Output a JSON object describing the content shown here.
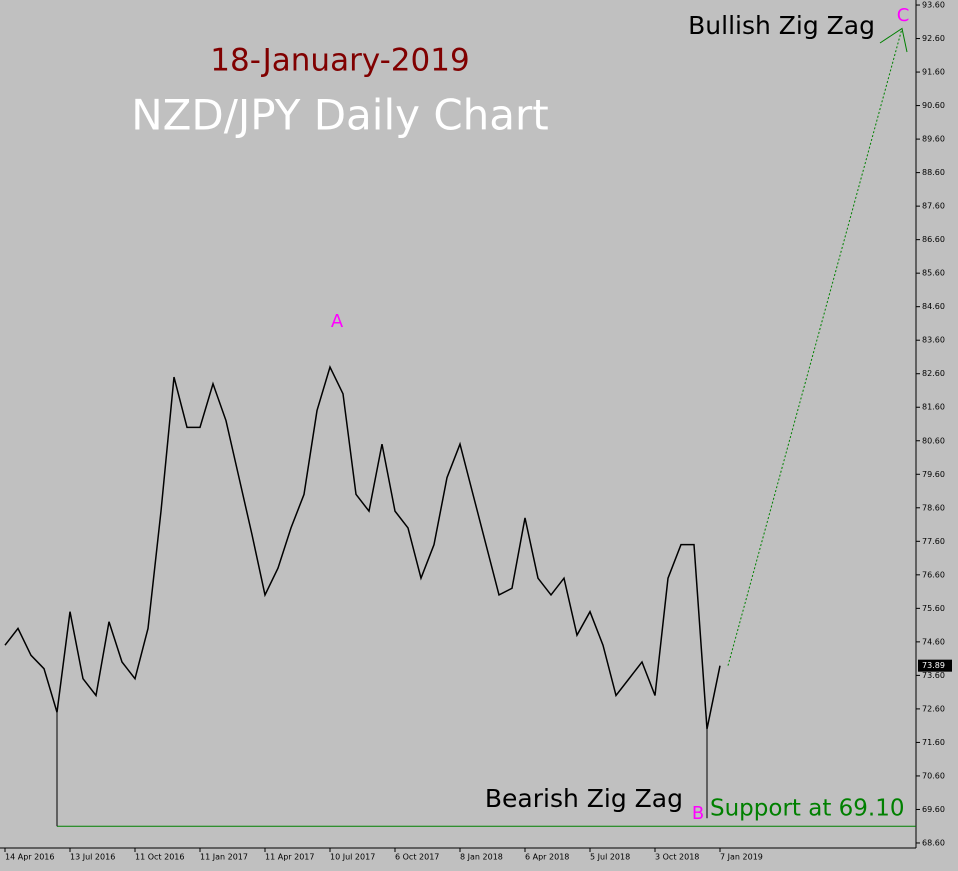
{
  "chart_data": {
    "type": "line",
    "title": "18-January-2019",
    "subtitle": "NZD/JPY Daily Chart",
    "annotations": {
      "bullish": "Bullish Zig Zag",
      "bearish": "Bearish Zig Zag",
      "support_label": "Support at 69.10",
      "wave_a": "A",
      "wave_b": "B",
      "wave_c": "C"
    },
    "categories": [
      "14 Apr 2016",
      null,
      null,
      null,
      null,
      "13 Jul 2016",
      null,
      null,
      null,
      null,
      "11 Oct 2016",
      null,
      null,
      null,
      null,
      "11 Jan 2017",
      null,
      null,
      null,
      null,
      "11 Apr 2017",
      null,
      null,
      null,
      null,
      "10 Jul 2017",
      null,
      null,
      null,
      null,
      "6 Oct 2017",
      null,
      null,
      null,
      null,
      "8 Jan 2018",
      null,
      null,
      null,
      null,
      "6 Apr 2018",
      null,
      null,
      null,
      null,
      "5 Jul 2018",
      null,
      null,
      null,
      null,
      "3 Oct 2018",
      null,
      null,
      null,
      null,
      "7 Jan 2019"
    ],
    "series": [
      {
        "name": "NZD/JPY",
        "color": "#000000",
        "values": [
          74.5,
          75.0,
          74.2,
          73.8,
          72.5,
          75.5,
          73.5,
          73.0,
          75.2,
          74.0,
          73.5,
          75.0,
          78.5,
          82.5,
          81.0,
          81.0,
          82.3,
          81.2,
          79.5,
          77.8,
          76.0,
          76.8,
          78.0,
          79.0,
          81.5,
          82.8,
          82.0,
          79.0,
          78.5,
          80.5,
          78.5,
          78.0,
          76.5,
          77.5,
          79.5,
          80.5,
          79.0,
          77.5,
          76.0,
          76.2,
          78.3,
          76.5,
          76.0,
          76.5,
          74.8,
          75.5,
          74.5,
          73.0,
          73.5,
          74.0,
          73.0,
          76.5,
          77.5,
          77.5,
          72.0,
          73.89
        ]
      }
    ],
    "current_price": 73.89,
    "support": 69.1,
    "target": 92.9,
    "ylim": [
      68.45,
      93.75
    ],
    "yticks": [
      {
        "value": 68.6,
        "label": "68.60"
      },
      {
        "value": 69.6,
        "label": "69.60"
      },
      {
        "value": 70.6,
        "label": "70.60"
      },
      {
        "value": 71.6,
        "label": "71.60"
      },
      {
        "value": 72.6,
        "label": "72.60"
      },
      {
        "value": 73.6,
        "label": "73.60"
      },
      {
        "value": 74.6,
        "label": "74.60"
      },
      {
        "value": 75.6,
        "label": "75.60"
      },
      {
        "value": 76.6,
        "label": "76.60"
      },
      {
        "value": 77.6,
        "label": "77.60"
      },
      {
        "value": 78.6,
        "label": "78.60"
      },
      {
        "value": 79.6,
        "label": "79.60"
      },
      {
        "value": 80.6,
        "label": "80.60"
      },
      {
        "value": 81.6,
        "label": "81.60"
      },
      {
        "value": 82.6,
        "label": "82.60"
      },
      {
        "value": 83.6,
        "label": "83.60"
      },
      {
        "value": 84.6,
        "label": "84.60"
      },
      {
        "value": 85.6,
        "label": "85.60"
      },
      {
        "value": 86.6,
        "label": "86.60"
      },
      {
        "value": 87.6,
        "label": "87.60"
      },
      {
        "value": 88.6,
        "label": "88.60"
      },
      {
        "value": 89.6,
        "label": "89.60"
      },
      {
        "value": 90.6,
        "label": "90.60"
      },
      {
        "value": 91.6,
        "label": "91.60"
      },
      {
        "value": 92.6,
        "label": "92.60"
      },
      {
        "value": 93.6,
        "label": "93.60"
      }
    ],
    "grid": false
  }
}
